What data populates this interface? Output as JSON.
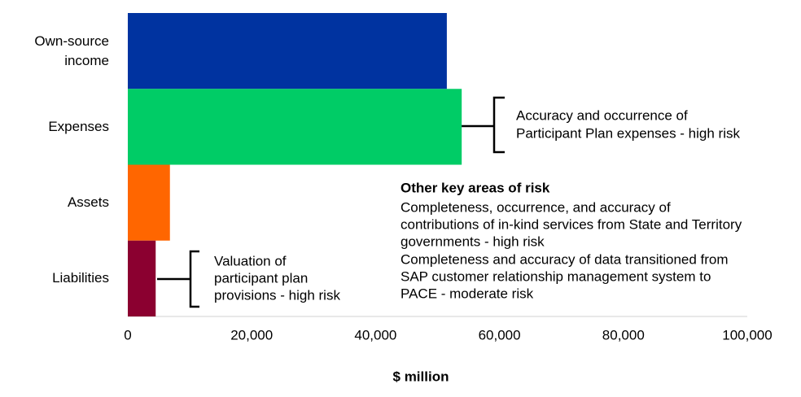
{
  "chart_data": {
    "type": "bar",
    "orientation": "horizontal",
    "categories": [
      "Own-source income",
      "Expenses",
      "Assets",
      "Liabilities"
    ],
    "values": [
      51500,
      53900,
      6800,
      4500
    ],
    "colors": [
      "#0033a0",
      "#00cc66",
      "#ff6600",
      "#8b0030"
    ],
    "xlabel": "$ million",
    "xlim": [
      0,
      100000
    ],
    "xticks": [
      0,
      {
        "value": 20000,
        "label": "20,000"
      },
      {
        "value": 40000,
        "label": "40,000"
      },
      {
        "value": 60000,
        "label": "60,000"
      },
      {
        "value": 80000,
        "label": "80,000"
      },
      {
        "value": 100000,
        "label": "100,000"
      }
    ],
    "grid": false,
    "annotations": [
      {
        "lines": [
          "Accuracy and occurrence of",
          "Participant Plan expenses - high risk"
        ]
      },
      {
        "lines": [
          "Valuation of",
          "participant plan",
          "provisions - high risk"
        ]
      },
      {
        "title": "Other key areas of risk",
        "lines": [
          "Completeness, occurrence, and accuracy of",
          "contributions of in-kind services from State and Territory",
          "governments - high risk",
          "Completeness and accuracy of data transitioned from",
          "SAP customer relationship management system to",
          "PACE - moderate risk"
        ]
      }
    ]
  }
}
